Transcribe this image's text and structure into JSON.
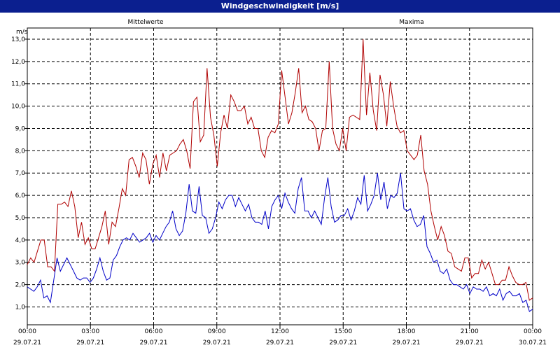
{
  "window": {
    "title": "Windgeschwindigkeit [m/s]"
  },
  "colors": {
    "mean": "#0000c8",
    "max": "#b00000",
    "title_bg": "#0b1f8f",
    "grid": "#000000"
  },
  "chart_data": {
    "type": "line",
    "title": "Windgeschwindigkeit [m/s]",
    "ylabel": "m/s",
    "ylim": [
      0.2,
      13.5
    ],
    "y_ticks": [
      "1,0",
      "2,0",
      "3,0",
      "4,0",
      "5,0",
      "6,0",
      "7,0",
      "8,0",
      "9,0",
      "10,0",
      "11,0",
      "12,0",
      "13,0"
    ],
    "y_tick_values": [
      1,
      2,
      3,
      4,
      5,
      6,
      7,
      8,
      9,
      10,
      11,
      12,
      13
    ],
    "xlim": [
      0,
      24
    ],
    "x_ticks": [
      {
        "time": "00:00",
        "date": "29.07.21"
      },
      {
        "time": "03:00",
        "date": "29.07.21"
      },
      {
        "time": "06:00",
        "date": "29.07.21"
      },
      {
        "time": "09:00",
        "date": "29.07.21"
      },
      {
        "time": "12:00",
        "date": "29.07.21"
      },
      {
        "time": "15:00",
        "date": "29.07.21"
      },
      {
        "time": "18:00",
        "date": "29.07.21"
      },
      {
        "time": "21:00",
        "date": "29.07.21"
      },
      {
        "time": "00:00",
        "date": "30.07.21"
      }
    ],
    "grid": true,
    "legend": "top",
    "series": [
      {
        "name": "Mittelwerte",
        "color": "#0000c8",
        "values": [
          1.9,
          1.8,
          1.7,
          1.9,
          2.2,
          1.4,
          1.5,
          1.2,
          2.2,
          3.2,
          2.6,
          2.9,
          3.2,
          2.9,
          2.6,
          2.3,
          2.2,
          2.3,
          2.3,
          2.1,
          2.3,
          2.7,
          3.2,
          2.6,
          2.2,
          2.3,
          3.1,
          3.3,
          3.7,
          4.0,
          4.1,
          4.0,
          4.3,
          4.1,
          3.9,
          4.0,
          4.1,
          4.3,
          3.9,
          4.2,
          4.0,
          4.3,
          4.6,
          4.8,
          5.3,
          4.5,
          4.2,
          4.4,
          5.2,
          6.5,
          5.3,
          5.2,
          6.4,
          5.1,
          5.0,
          4.3,
          4.5,
          5.0,
          5.7,
          5.4,
          5.8,
          6.0,
          6.0,
          5.5,
          5.9,
          5.6,
          5.3,
          5.6,
          5.0,
          4.8,
          4.8,
          4.7,
          5.3,
          4.5,
          5.5,
          5.8,
          6.0,
          5.4,
          6.1,
          5.7,
          5.4,
          5.2,
          6.3,
          6.8,
          5.3,
          5.3,
          5.0,
          5.3,
          5.0,
          4.7,
          5.9,
          6.8,
          5.5,
          4.8,
          4.9,
          5.1,
          5.1,
          5.4,
          4.9,
          5.3,
          5.9,
          5.6,
          6.9,
          5.3,
          5.6,
          6.0,
          7.0,
          5.8,
          6.6,
          5.4,
          6.0,
          5.9,
          6.1,
          7.0,
          5.4,
          5.3,
          5.4,
          4.9,
          4.6,
          4.7,
          5.1,
          3.7,
          3.4,
          3.0,
          3.1,
          2.6,
          2.5,
          2.7,
          2.2,
          2.0,
          2.0,
          1.9,
          1.8,
          2.0,
          1.6,
          1.9,
          1.8,
          1.8,
          1.7,
          1.9,
          1.5,
          1.6,
          1.5,
          1.8,
          1.3,
          1.6,
          1.7,
          1.5,
          1.5,
          1.6,
          1.2,
          1.3,
          0.8,
          0.9
        ]
      },
      {
        "name": "Maxima",
        "color": "#b00000",
        "values": [
          2.9,
          3.2,
          3.0,
          3.5,
          4.0,
          4.0,
          2.8,
          2.8,
          2.6,
          5.6,
          5.6,
          5.7,
          5.5,
          6.2,
          5.5,
          4.1,
          4.8,
          3.8,
          4.1,
          3.6,
          3.6,
          4.1,
          4.6,
          5.3,
          3.8,
          4.8,
          4.6,
          5.4,
          6.3,
          6.0,
          7.6,
          7.7,
          7.3,
          6.8,
          7.9,
          7.6,
          6.5,
          7.4,
          7.8,
          6.8,
          7.9,
          7.1,
          7.8,
          7.9,
          8.0,
          8.3,
          8.5,
          8.0,
          7.2,
          10.2,
          10.4,
          8.4,
          8.7,
          11.7,
          9.5,
          8.7,
          7.3,
          8.8,
          9.6,
          9.0,
          10.5,
          10.2,
          9.8,
          9.8,
          10.0,
          9.2,
          9.5,
          9.0,
          9.0,
          8.0,
          7.7,
          8.6,
          8.9,
          8.8,
          9.2,
          11.6,
          10.4,
          9.2,
          9.7,
          10.6,
          11.7,
          9.7,
          10.0,
          9.4,
          9.3,
          9.0,
          8.0,
          8.9,
          9.0,
          12.0,
          9.0,
          8.3,
          8.0,
          9.0,
          8.0,
          9.5,
          9.6,
          9.5,
          9.4,
          13.0,
          9.6,
          11.5,
          9.8,
          8.9,
          11.4,
          10.5,
          9.1,
          11.1,
          10.0,
          9.1,
          8.8,
          8.9,
          8.0,
          7.8,
          7.6,
          7.8,
          8.7,
          7.1,
          6.5,
          5.3,
          4.6,
          4.0,
          4.6,
          4.2,
          3.5,
          3.4,
          2.8,
          2.7,
          2.6,
          3.2,
          3.2,
          2.3,
          2.5,
          2.5,
          3.1,
          2.7,
          3.0,
          2.5,
          2.0,
          2.0,
          2.2,
          2.2,
          2.8,
          2.4,
          2.1,
          2.0,
          2.0,
          2.1,
          1.3,
          1.4
        ]
      }
    ]
  }
}
